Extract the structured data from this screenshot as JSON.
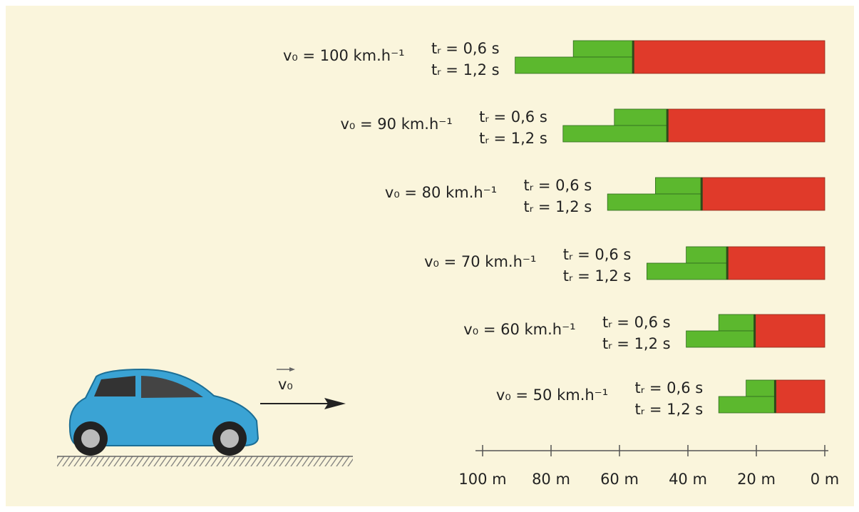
{
  "chart_data": {
    "type": "bar",
    "orientation": "horizontal",
    "categories": [
      "v₀ = 100 km.h⁻¹",
      "v₀ = 90 km.h⁻¹",
      "v₀ = 80 km.h⁻¹",
      "v₀ = 70 km.h⁻¹",
      "v₀ = 60 km.h⁻¹",
      "v₀ = 50 km.h⁻¹"
    ],
    "series": [
      {
        "name": "tᵣ = 0,6 s",
        "color": "#5cb82e",
        "values": [
          17.5,
          15.5,
          13.5,
          12,
          10.5,
          8.5
        ]
      },
      {
        "name": "tᵣ = 1,2 s",
        "color": "#5cb82e",
        "values": [
          34.5,
          30.5,
          27.5,
          23.5,
          20,
          16.5
        ]
      },
      {
        "color": "#e03a2a",
        "values": [
          56,
          46,
          36,
          28.5,
          20.5,
          14.5
        ]
      }
    ],
    "xlim": [
      100,
      0
    ],
    "xticks": [
      {
        "value": 100,
        "label": "100 m"
      },
      {
        "value": 80,
        "label": "80 m"
      },
      {
        "value": 60,
        "label": "60 m"
      },
      {
        "value": 40,
        "label": "40 m"
      },
      {
        "value": 20,
        "label": "20 m"
      },
      {
        "value": 0,
        "label": "0 m"
      }
    ],
    "annotation": "v₀"
  }
}
